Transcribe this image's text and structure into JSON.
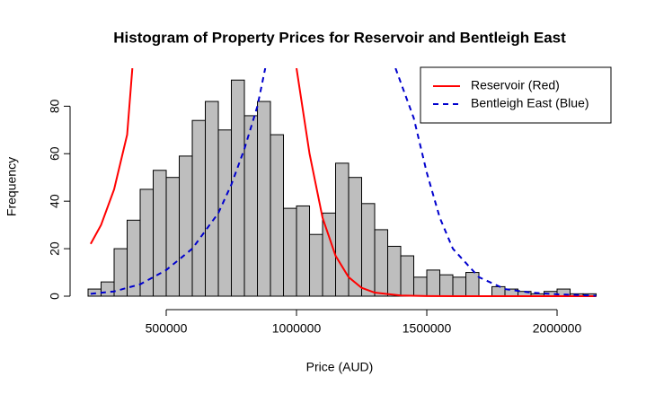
{
  "chart_data": {
    "type": "histogram",
    "title": "Histogram of Property Prices for Reservoir and Bentleigh East",
    "x_label": "Price (AUD)",
    "y_label": "Frequency",
    "bins": [
      200000,
      250000,
      300000,
      350000,
      400000,
      450000,
      500000,
      550000,
      600000,
      650000,
      700000,
      750000,
      800000,
      850000,
      900000,
      950000,
      1000000,
      1050000,
      1100000,
      1150000,
      1200000,
      1250000,
      1300000,
      1350000,
      1400000,
      1450000,
      1500000,
      1550000,
      1600000,
      1650000,
      1700000,
      1750000,
      1800000,
      1850000,
      1900000,
      1950000,
      2000000,
      2050000,
      2100000,
      2150000
    ],
    "values": [
      3,
      6,
      20,
      32,
      45,
      53,
      50,
      59,
      74,
      82,
      70,
      91,
      76,
      82,
      68,
      37,
      38,
      26,
      35,
      56,
      50,
      39,
      28,
      21,
      17,
      8,
      11,
      9,
      8,
      10,
      0,
      4,
      3,
      2,
      1,
      2,
      3,
      1,
      1
    ],
    "color": "#bebebe",
    "xlim": [
      131000,
      2162000
    ],
    "ylim": [
      0,
      96
    ],
    "xticks": [
      500000,
      1000000,
      1500000,
      2000000
    ],
    "yticks": [
      0,
      20,
      40,
      60,
      80
    ],
    "legend": "topright",
    "series": [
      {
        "name": "Reservoir (Red)",
        "color": "#ff0000",
        "dashed": false,
        "x": [
          210000,
          250000,
          300000,
          350000,
          370000,
          null,
          1000000,
          1050000,
          1100000,
          1150000,
          1200000,
          1250000,
          1300000,
          1400000,
          1500000,
          1700000,
          2150000
        ],
        "values": [
          22,
          30,
          45,
          68,
          96,
          null,
          96,
          60,
          33,
          17,
          8,
          3.5,
          1.5,
          0.3,
          0.05,
          0,
          0
        ]
      },
      {
        "name": "Bentleigh East (Blue)",
        "color": "#0000cd",
        "dashed": true,
        "x": [
          210000,
          300000,
          400000,
          500000,
          600000,
          700000,
          750000,
          800000,
          850000,
          880000,
          null,
          1380000,
          1450000,
          1500000,
          1550000,
          1600000,
          1700000,
          1800000,
          1900000,
          2000000,
          2150000
        ],
        "values": [
          1,
          2,
          5,
          11,
          20,
          35,
          47,
          62,
          80,
          96,
          null,
          96,
          75,
          52,
          33,
          20,
          8,
          3,
          1.5,
          0.8,
          0.2
        ]
      }
    ]
  }
}
